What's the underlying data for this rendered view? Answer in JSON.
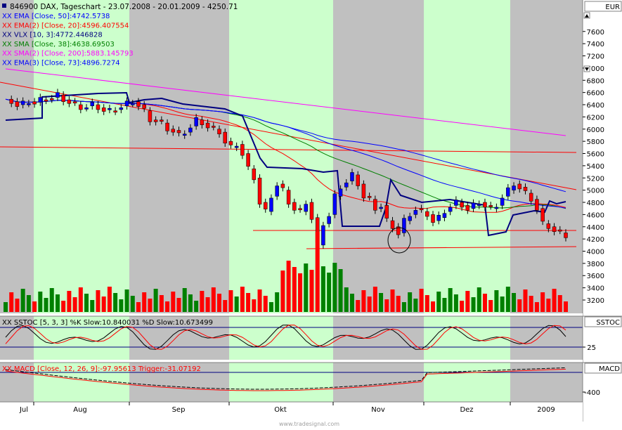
{
  "header": {
    "symbol_icon": "square-bullet-icon",
    "title": "846900  DAX, Tageschart - 23.07.2008 - 20.01.2009 - 4250.71"
  },
  "legend": [
    {
      "text": "XX EMA [Close, 50]:4742.5738",
      "color": "#0000ff"
    },
    {
      "text": "XX EMA(2) [Close, 20]:4596.407554",
      "color": "#ff0000"
    },
    {
      "text": "XX VLX [10, 3]:4772.446828",
      "color": "#00007f"
    },
    {
      "text": "XX SMA [Close, 38]:4638.69503",
      "color": "#007f00"
    },
    {
      "text": "XX SMA(2) [Close, 200]:5883.145793",
      "color": "#ff00ff"
    },
    {
      "text": "XX EMA(3) [Close, 73]:4896.7274",
      "color": "#0000ff"
    }
  ],
  "price_axis": {
    "unit": "EUR",
    "ticks": [
      "7600",
      "7400",
      "7200",
      "7000",
      "6800",
      "6600",
      "6400",
      "6200",
      "6000",
      "5800",
      "5600",
      "5400",
      "5200",
      "5000",
      "4800",
      "4600",
      "4400",
      "4200",
      "4000",
      "3800",
      "3600",
      "3400",
      "3200"
    ]
  },
  "stoch": {
    "label": "XX SSTOC [5, 3, 3] %K Slow:10.840031 %D Slow:10.673499",
    "axis_title": "SSTOC",
    "tick": "25"
  },
  "macd": {
    "label": "XX MACD [Close, 12, 26, 9]:-97.95613 Trigger:-31.07192",
    "axis_title": "MACD",
    "tick": "-400"
  },
  "x_labels": [
    "Jul",
    "Aug",
    "Sep",
    "Okt",
    "Nov",
    "Dez",
    "2009"
  ],
  "watermark": "www.tradesignal.com",
  "nav_buttons": {
    "up": "scroll-up-button",
    "down": "scroll-down-button"
  },
  "colors": {
    "bull": "#0000ff",
    "bear": "#ff0000",
    "vol_up": "#008000",
    "vol_down": "#ff0000",
    "band_green": "#ccffcc",
    "band_gray": "#c0c0c0"
  },
  "chart_data": {
    "type": "candlestick",
    "title": "846900 DAX, Tageschart - 23.07.2008 - 20.01.2009 - 4250.71",
    "x_range": [
      "2008-07-23",
      "2009-01-20"
    ],
    "y_range": [
      3050,
      7750
    ],
    "series": [
      {
        "name": "EMA [Close, 50]",
        "last": 4742.5738,
        "color": "#0000ff"
      },
      {
        "name": "EMA(2) [Close, 20]",
        "last": 4596.407554,
        "color": "#ff0000"
      },
      {
        "name": "VLX [10, 3]",
        "last": 4772.446828,
        "color": "#00007f"
      },
      {
        "name": "SMA [Close, 38]",
        "last": 4638.69503,
        "color": "#007f00"
      },
      {
        "name": "SMA(2) [Close, 200]",
        "last": 5883.145793,
        "color": "#ff00ff"
      },
      {
        "name": "EMA(3) [Close, 73]",
        "last": 4896.7274,
        "color": "#0000ff"
      }
    ],
    "close_path": [
      6490,
      6450,
      6400,
      6420,
      6450,
      6440,
      6480,
      6500,
      6520,
      6560,
      6480,
      6450,
      6400,
      6350,
      6380,
      6400,
      6350,
      6320,
      6300,
      6320,
      6380,
      6420,
      6450,
      6400,
      6300,
      6150,
      6150,
      6100,
      6000,
      5980,
      5900,
      5950,
      6050,
      6150,
      6100,
      6050,
      6000,
      5950,
      5800,
      5700,
      5750,
      5600,
      5350,
      5200,
      4800,
      4650,
      4900,
      5100,
      5000,
      4800,
      4700,
      4650,
      4800,
      4550,
      4100,
      4450,
      4600,
      4900,
      5050,
      5150,
      5250,
      5100,
      4900,
      4850,
      4700,
      4750,
      4500,
      4400,
      4300,
      4500,
      4600,
      4700,
      4650,
      4600,
      4500,
      4550,
      4650,
      4750,
      4800,
      4750,
      4700,
      4750,
      4800,
      4750,
      4700,
      4750,
      4900,
      5000,
      5100,
      5050,
      4950,
      4850,
      4700,
      4450,
      4400,
      4350,
      4300,
      4250
    ],
    "stoch_k_last": 10.840031,
    "stoch_d_last": 10.673499,
    "macd_last": -97.95613,
    "trigger_last": -31.07192
  }
}
